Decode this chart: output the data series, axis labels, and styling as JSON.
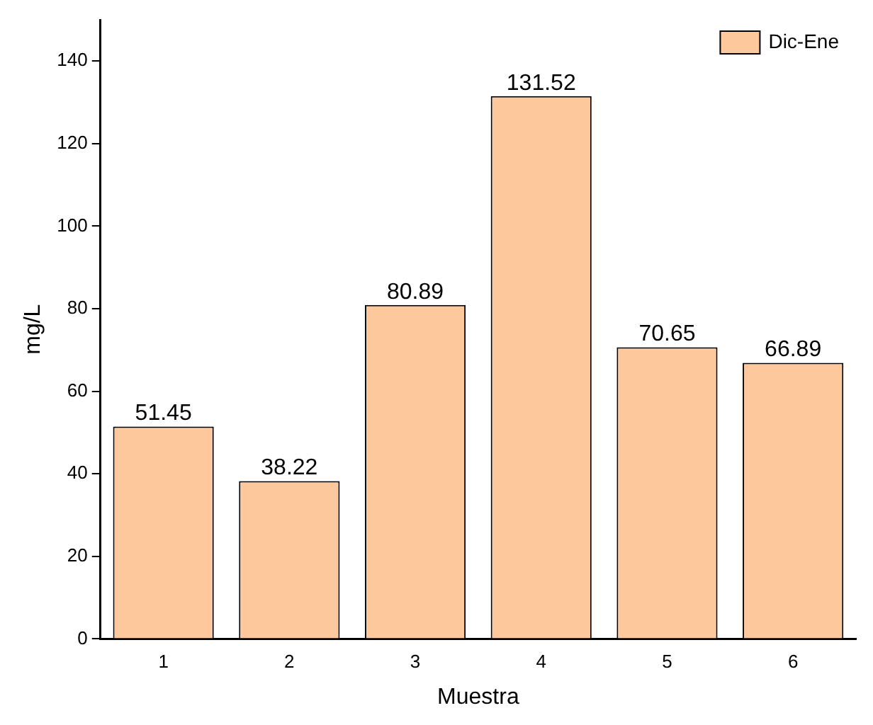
{
  "chart_data": {
    "type": "bar",
    "xlabel": "Muestra",
    "ylabel": "mg/L",
    "categories": [
      "1",
      "2",
      "3",
      "4",
      "5",
      "6"
    ],
    "series": [
      {
        "name": "Dic-Ene",
        "color": "#fdc89b",
        "values": [
          51.45,
          38.22,
          80.89,
          131.52,
          70.65,
          66.89
        ]
      }
    ],
    "ylim": [
      0,
      150
    ],
    "yticks": [
      0,
      20,
      40,
      60,
      80,
      100,
      120,
      140
    ],
    "grid": false,
    "legend": "top right",
    "data_labels": true
  }
}
